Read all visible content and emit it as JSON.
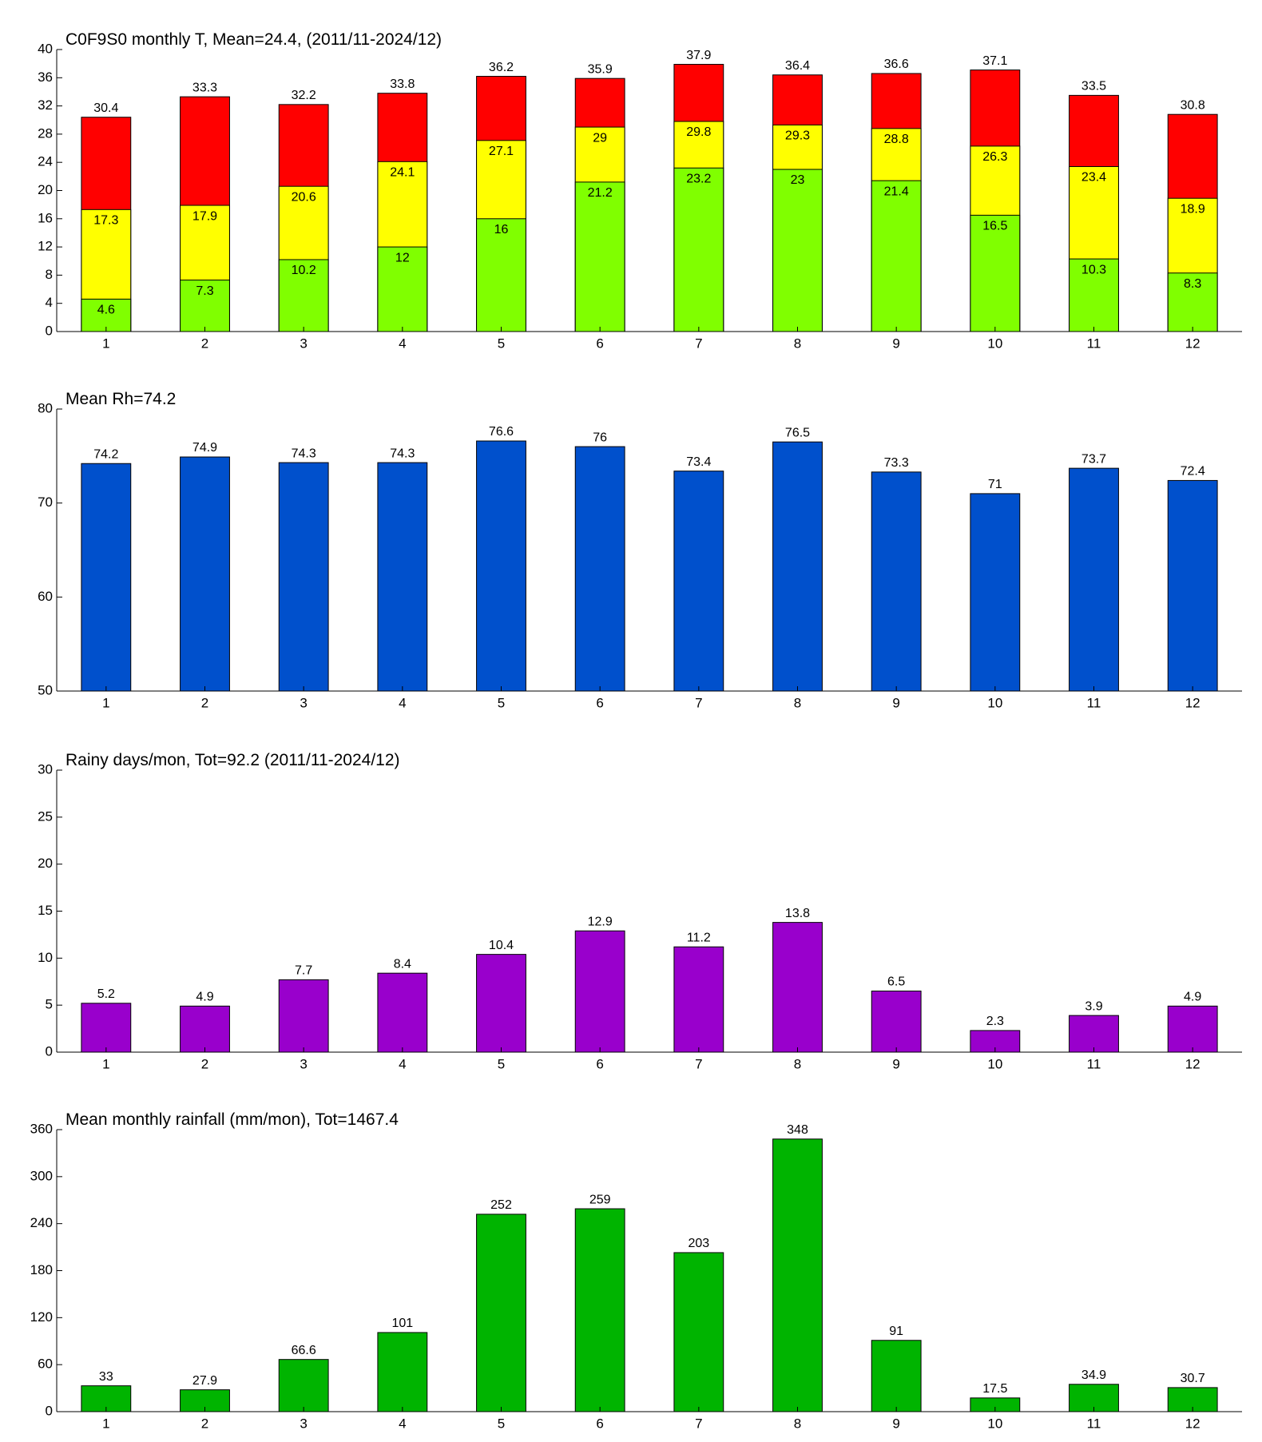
{
  "chart_data": [
    {
      "type": "bar",
      "title": "C0F9S0 monthly T, Mean=24.4, (2011/11-2024/12)",
      "categories": [
        "1",
        "2",
        "3",
        "4",
        "5",
        "6",
        "7",
        "8",
        "9",
        "10",
        "11",
        "12"
      ],
      "series": [
        {
          "color": "#ff0000",
          "values": [
            30.4,
            33.3,
            32.2,
            33.8,
            36.2,
            35.9,
            37.9,
            36.4,
            36.6,
            37.1,
            33.5,
            30.8
          ]
        },
        {
          "color": "#ffff00",
          "values": [
            17.3,
            17.9,
            20.6,
            24.1,
            27.1,
            29,
            29.8,
            29.3,
            28.8,
            26.3,
            23.4,
            18.9
          ]
        },
        {
          "color": "#80ff00",
          "values": [
            4.6,
            7.3,
            10.2,
            12,
            16,
            21.2,
            23.2,
            23,
            21.4,
            16.5,
            10.3,
            8.3
          ]
        }
      ],
      "ylim": [
        0,
        40
      ],
      "yticks": [
        0,
        4,
        8,
        12,
        16,
        20,
        24,
        28,
        32,
        36,
        40
      ]
    },
    {
      "type": "bar",
      "title": "Mean Rh=74.2",
      "categories": [
        "1",
        "2",
        "3",
        "4",
        "5",
        "6",
        "7",
        "8",
        "9",
        "10",
        "11",
        "12"
      ],
      "series": [
        {
          "color": "#0050cc",
          "values": [
            74.2,
            74.9,
            74.3,
            74.3,
            76.6,
            76,
            73.4,
            76.5,
            73.3,
            71,
            73.7,
            72.4
          ]
        }
      ],
      "ylim": [
        50,
        80
      ],
      "yticks": [
        50,
        60,
        70,
        80
      ]
    },
    {
      "type": "bar",
      "title": "Rainy days/mon, Tot=92.2 (2011/11-2024/12)",
      "categories": [
        "1",
        "2",
        "3",
        "4",
        "5",
        "6",
        "7",
        "8",
        "9",
        "10",
        "11",
        "12"
      ],
      "series": [
        {
          "color": "#9900cc",
          "values": [
            5.2,
            4.9,
            7.7,
            8.4,
            10.4,
            12.9,
            11.2,
            13.8,
            6.5,
            2.3,
            3.9,
            4.9
          ]
        }
      ],
      "ylim": [
        0,
        30
      ],
      "yticks": [
        0,
        5,
        10,
        15,
        20,
        25,
        30
      ]
    },
    {
      "type": "bar",
      "title": "Mean monthly rainfall (mm/mon), Tot=1467.4",
      "categories": [
        "1",
        "2",
        "3",
        "4",
        "5",
        "6",
        "7",
        "8",
        "9",
        "10",
        "11",
        "12"
      ],
      "series": [
        {
          "color": "#00b400",
          "values": [
            33,
            27.9,
            66.6,
            101,
            252,
            259,
            203,
            348,
            91,
            17.5,
            34.9,
            30.7
          ]
        }
      ],
      "ylim": [
        0,
        360
      ],
      "yticks": [
        0,
        60,
        120,
        180,
        240,
        300,
        360
      ]
    }
  ]
}
